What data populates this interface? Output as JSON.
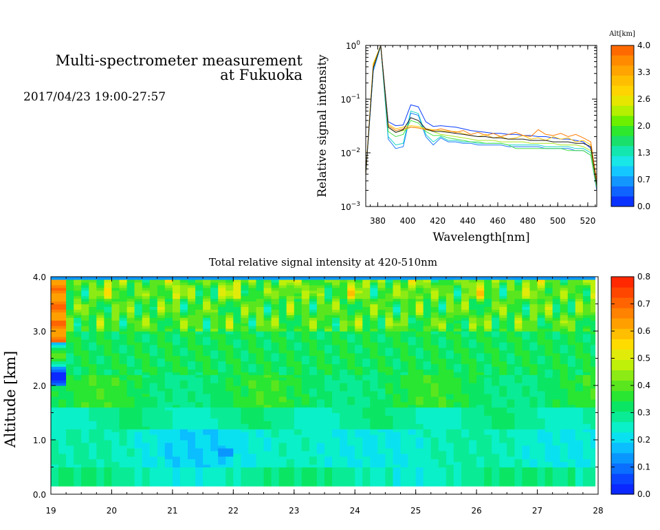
{
  "header": {
    "title_line1": "Multi-spectrometer measurement",
    "title_line2": "at Fukuoka",
    "datetime": "2017/04/23 19:00-27:57"
  },
  "chart_data": [
    {
      "type": "line",
      "xlabel": "Wavelength[nm]",
      "ylabel": "Relative signal intensity",
      "xlim": [
        372,
        526
      ],
      "ylim": [
        0.001,
        1
      ],
      "yscale": "log",
      "x_ticks": [
        380,
        400,
        420,
        440,
        460,
        480,
        500,
        520
      ],
      "y_ticks": [
        {
          "value": 0.001,
          "base": "10",
          "exp": "−3"
        },
        {
          "value": 0.01,
          "base": "10",
          "exp": "−2"
        },
        {
          "value": 0.1,
          "base": "10",
          "exp": "−1"
        },
        {
          "value": 1,
          "base": "10",
          "exp": "0"
        }
      ],
      "x": [
        372,
        377,
        382,
        387,
        392,
        397,
        402,
        407,
        412,
        417,
        422,
        427,
        432,
        437,
        442,
        447,
        452,
        457,
        462,
        467,
        472,
        477,
        482,
        487,
        492,
        497,
        502,
        507,
        512,
        517,
        522,
        526
      ],
      "series": [
        {
          "alt": 0.0,
          "color": "#0a3cff",
          "values": [
            0.004,
            0.35,
            1.0,
            0.038,
            0.032,
            0.033,
            0.078,
            0.072,
            0.038,
            0.031,
            0.032,
            0.031,
            0.03,
            0.028,
            0.026,
            0.025,
            0.024,
            0.023,
            0.023,
            0.022,
            0.022,
            0.021,
            0.021,
            0.02,
            0.02,
            0.019,
            0.018,
            0.018,
            0.017,
            0.016,
            0.012,
            0.0025
          ]
        },
        {
          "alt": 0.7,
          "color": "#1e78ff",
          "values": [
            0.004,
            0.33,
            0.98,
            0.018,
            0.012,
            0.013,
            0.055,
            0.05,
            0.02,
            0.014,
            0.019,
            0.016,
            0.016,
            0.015,
            0.015,
            0.014,
            0.014,
            0.014,
            0.014,
            0.013,
            0.013,
            0.013,
            0.013,
            0.013,
            0.012,
            0.012,
            0.012,
            0.012,
            0.011,
            0.011,
            0.009,
            0.002
          ]
        },
        {
          "alt": 1.3,
          "color": "#19d6c8",
          "values": [
            0.004,
            0.36,
            0.98,
            0.02,
            0.014,
            0.015,
            0.06,
            0.054,
            0.022,
            0.016,
            0.02,
            0.017,
            0.017,
            0.016,
            0.016,
            0.015,
            0.015,
            0.015,
            0.015,
            0.014,
            0.014,
            0.014,
            0.014,
            0.014,
            0.013,
            0.013,
            0.013,
            0.013,
            0.012,
            0.012,
            0.01,
            0.0022
          ]
        },
        {
          "alt": 2.0,
          "color": "#46e046",
          "values": [
            0.004,
            0.42,
            0.99,
            0.025,
            0.02,
            0.022,
            0.04,
            0.036,
            0.025,
            0.021,
            0.021,
            0.019,
            0.018,
            0.017,
            0.016,
            0.016,
            0.015,
            0.015,
            0.015,
            0.014,
            0.012,
            0.012,
            0.012,
            0.012,
            0.012,
            0.012,
            0.012,
            0.011,
            0.011,
            0.011,
            0.009,
            0.0022
          ]
        },
        {
          "alt": 2.6,
          "color": "#a8e61e",
          "values": [
            0.004,
            0.46,
            0.99,
            0.03,
            0.024,
            0.026,
            0.03,
            0.029,
            0.027,
            0.025,
            0.022,
            0.021,
            0.02,
            0.019,
            0.018,
            0.017,
            0.017,
            0.017,
            0.016,
            0.016,
            0.016,
            0.016,
            0.015,
            0.015,
            0.015,
            0.015,
            0.014,
            0.014,
            0.014,
            0.013,
            0.011,
            0.0024
          ]
        },
        {
          "alt": 3.3,
          "color": "#ffc400",
          "values": [
            0.004,
            0.44,
            0.99,
            0.034,
            0.028,
            0.03,
            0.032,
            0.031,
            0.028,
            0.027,
            0.026,
            0.025,
            0.025,
            0.023,
            0.021,
            0.02,
            0.022,
            0.019,
            0.02,
            0.018,
            0.019,
            0.021,
            0.018,
            0.019,
            0.017,
            0.02,
            0.018,
            0.019,
            0.016,
            0.017,
            0.014,
            0.0026
          ]
        },
        {
          "alt": 4.0,
          "color": "#ff7a00",
          "values": [
            0.004,
            0.42,
            0.99,
            0.032,
            0.026,
            0.028,
            0.03,
            0.029,
            0.027,
            0.026,
            0.028,
            0.026,
            0.024,
            0.026,
            0.022,
            0.024,
            0.021,
            0.023,
            0.02,
            0.022,
            0.024,
            0.021,
            0.02,
            0.027,
            0.022,
            0.021,
            0.023,
            0.02,
            0.022,
            0.019,
            0.016,
            0.003
          ]
        },
        {
          "alt": null,
          "color": "#1a1a1a",
          "values": [
            0.004,
            0.38,
            1.0,
            0.03,
            0.024,
            0.027,
            0.045,
            0.04,
            0.028,
            0.025,
            0.025,
            0.024,
            0.023,
            0.022,
            0.021,
            0.02,
            0.02,
            0.019,
            0.019,
            0.018,
            0.018,
            0.018,
            0.017,
            0.017,
            0.017,
            0.016,
            0.016,
            0.016,
            0.015,
            0.015,
            0.013,
            0.0025
          ]
        }
      ],
      "colorbar": {
        "label": "Alt[km]",
        "tick_labels": [
          "4.0",
          "3.3",
          "2.6",
          "2.0",
          "1.3",
          "0.7",
          "0.0"
        ],
        "colors": [
          "#ff6a00",
          "#ff8a00",
          "#ffa400",
          "#ffbf00",
          "#ffd400",
          "#e6e600",
          "#b4f000",
          "#6cf000",
          "#2ee82e",
          "#19e06a",
          "#14e6b0",
          "#19e6e6",
          "#14c8ff",
          "#1496ff",
          "#0f64ff",
          "#0a32ff"
        ]
      }
    },
    {
      "type": "heatmap",
      "title": "Total relative signal intensity at 420-510nm",
      "ylabel": "Altitude [km]",
      "xlim": [
        19,
        28
      ],
      "ylim": [
        0,
        4
      ],
      "x_ticks": [
        "19",
        "20",
        "21",
        "22",
        "23",
        "24",
        "25",
        "26",
        "27",
        "28"
      ],
      "y_ticks": [
        "0.0",
        "1.0",
        "2.0",
        "3.0",
        "4.0"
      ],
      "data_x_range": [
        19,
        27.95
      ],
      "data_y_range": [
        0.15,
        4.0
      ],
      "colorbar": {
        "tick_labels": [
          "0.8",
          "0.7",
          "0.6",
          "0.5",
          "0.4",
          "0.3",
          "0.2",
          "0.1",
          "0.0"
        ],
        "range": [
          0,
          0.8
        ],
        "colors": [
          "#0a28ff",
          "#0a46ff",
          "#0a6eff",
          "#0a96ff",
          "#0abeff",
          "#0ae1f0",
          "#0af0c8",
          "#0aeb96",
          "#0ae664",
          "#28e632",
          "#5ae61e",
          "#8ceb14",
          "#bef00a",
          "#e1eb0a",
          "#ffdc00",
          "#ffbe00",
          "#ffa000",
          "#ff8200",
          "#ff6400",
          "#ff4600",
          "#ff2800"
        ]
      }
    }
  ]
}
